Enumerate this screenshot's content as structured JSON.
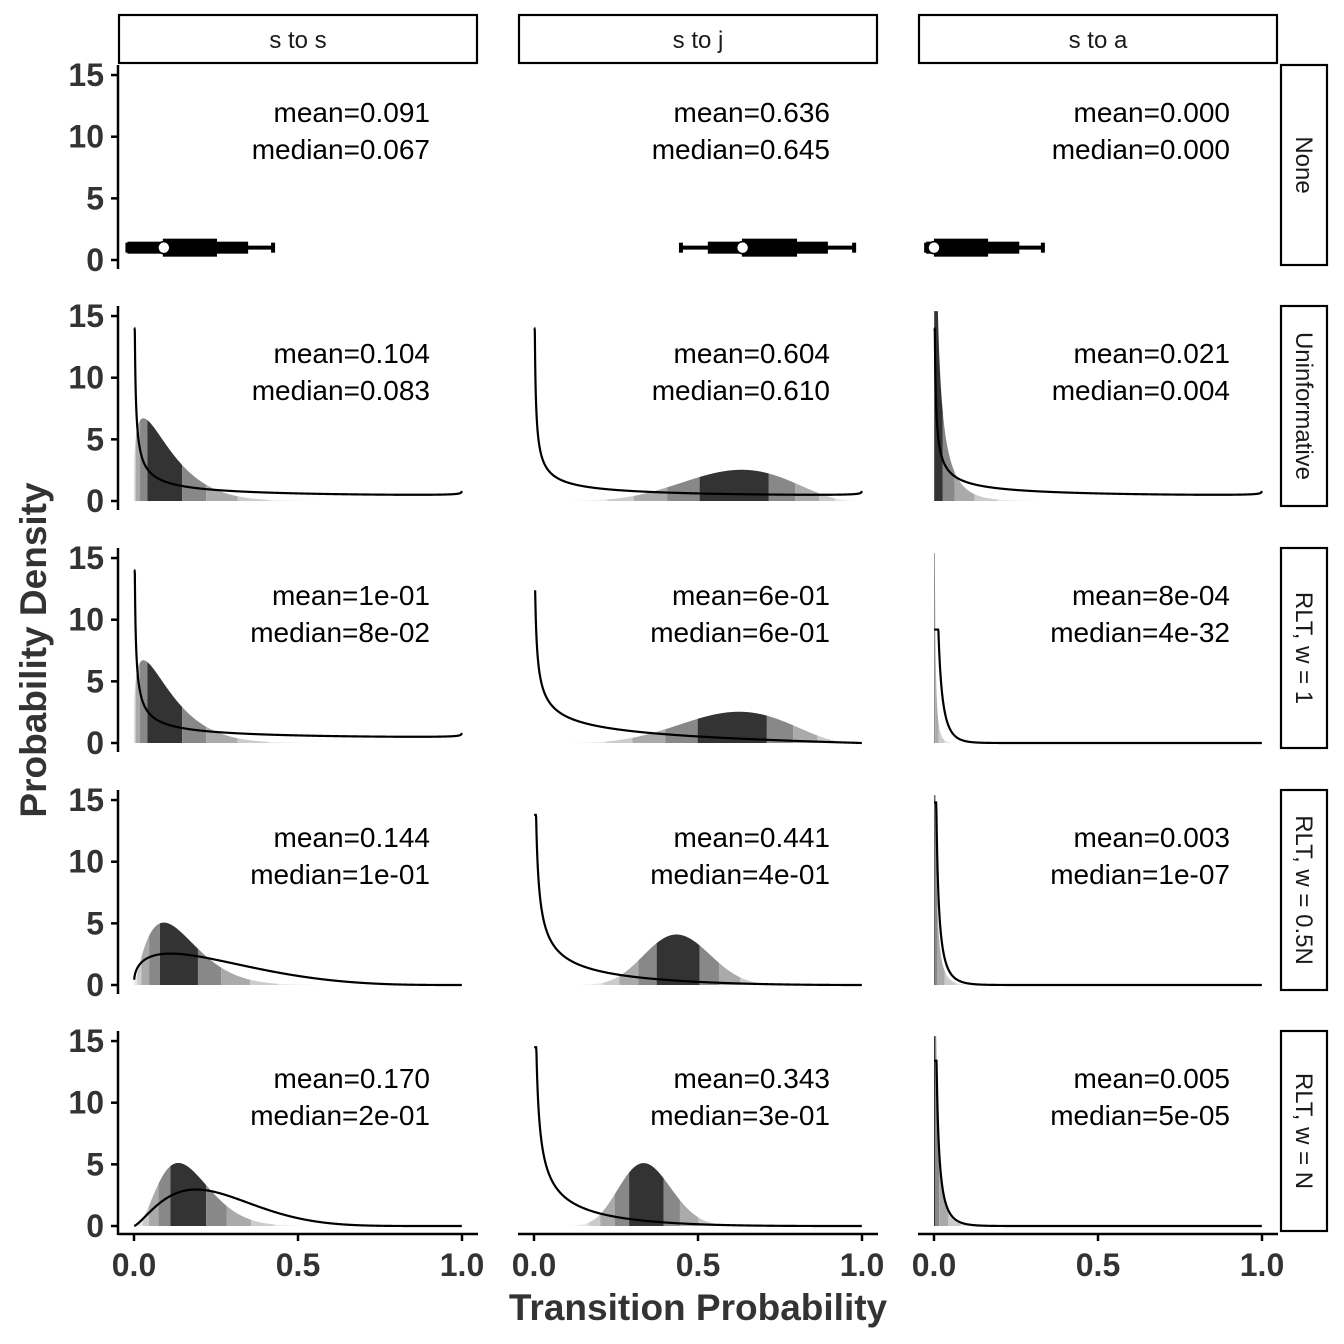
{
  "chart_data": {
    "type": "density",
    "xlabel": "Transition Probability",
    "ylabel": "Probability Density",
    "xlim": [
      0,
      1
    ],
    "ylim": [
      0,
      15
    ],
    "xticks": [
      "0.0",
      "0.5",
      "1.0"
    ],
    "yticks": [
      "0",
      "5",
      "10",
      "15"
    ],
    "grid": false,
    "interval_shades": [
      "#333333",
      "#888888",
      "#aaaaaa",
      "#cccccc",
      "#e6e6e6"
    ],
    "columns": [
      "s to s",
      "s to j",
      "s to a"
    ],
    "rows": [
      "None",
      "Uninformative",
      "RLT, w = 1",
      "RLT, w = 0.5N",
      "RLT, w = N"
    ],
    "panels": [
      {
        "row": 0,
        "col": 0,
        "mean": "mean=0.091",
        "median": "median=0.067",
        "point": 0.091,
        "intervals": [
          [
            -0.02,
            0.424
          ],
          [
            -0.02,
            0.348
          ],
          [
            0.088,
            0.253
          ]
        ]
      },
      {
        "row": 0,
        "col": 1,
        "mean": "mean=0.636",
        "median": "median=0.645",
        "point": 0.636,
        "intervals": [
          [
            0.448,
            0.976
          ],
          [
            0.53,
            0.896
          ],
          [
            0.634,
            0.802
          ]
        ]
      },
      {
        "row": 0,
        "col": 2,
        "mean": "mean=0.000",
        "median": "median=0.000",
        "point": 0.0,
        "intervals": [
          [
            -0.024,
            0.332
          ],
          [
            -0.024,
            0.26
          ],
          [
            0.0,
            0.165
          ]
        ]
      },
      {
        "row": 1,
        "col": 0,
        "mean": "mean=0.104",
        "median": "median=0.083",
        "posterior": [
          1.3,
          11.2
        ],
        "prior": [
          0.4,
          0.9
        ],
        "prior_peak": 14
      },
      {
        "row": 1,
        "col": 1,
        "mean": "mean=0.604",
        "median": "median=0.610",
        "posterior": [
          6,
          3.9
        ],
        "prior": [
          0.4,
          0.9
        ],
        "prior_peak": 14
      },
      {
        "row": 1,
        "col": 2,
        "mean": "mean=0.021",
        "median": "median=0.004",
        "posterior": [
          0.35,
          16
        ],
        "prior": [
          0.4,
          0.9
        ],
        "prior_peak": 14
      },
      {
        "row": 2,
        "col": 0,
        "mean": "mean=1e-01",
        "median": "median=8e-02",
        "posterior": [
          1.3,
          11.2
        ],
        "prior": [
          0.4,
          0.9
        ],
        "prior_peak": 14
      },
      {
        "row": 2,
        "col": 1,
        "mean": "mean=6e-01",
        "median": "median=6e-01",
        "posterior": [
          6,
          4
        ],
        "prior": [
          0.5,
          2
        ],
        "prior_peak": 12.3
      },
      {
        "row": 2,
        "col": 2,
        "mean": "mean=8e-04",
        "median": "median=4e-32",
        "posterior": [
          0.05,
          60
        ],
        "prior": [
          0.2,
          30
        ],
        "prior_peak": 9.2
      },
      {
        "row": 3,
        "col": 0,
        "mean": "mean=0.144",
        "median": "median=1e-01",
        "posterior": [
          2.2,
          13
        ],
        "prior": [
          1.4,
          4.2
        ],
        "prior_peak": 14
      },
      {
        "row": 3,
        "col": 1,
        "mean": "mean=0.441",
        "median": "median=4e-01",
        "posterior": [
          11.6,
          14.8
        ],
        "prior": [
          0.4,
          3
        ],
        "prior_peak": 13.8
      },
      {
        "row": 3,
        "col": 2,
        "mean": "mean=0.003",
        "median": "median=1e-07",
        "posterior": [
          0.1,
          33
        ],
        "prior": [
          0.15,
          25
        ],
        "prior_peak": 14.8
      },
      {
        "row": 4,
        "col": 0,
        "mean": "mean=0.170",
        "median": "median=2e-01",
        "posterior": [
          3.5,
          17
        ],
        "prior": [
          2.4,
          7
        ],
        "prior_peak": 14
      },
      {
        "row": 4,
        "col": 1,
        "mean": "mean=0.343",
        "median": "median=3e-01",
        "posterior": [
          12.7,
          24.3
        ],
        "prior": [
          0.4,
          4
        ],
        "prior_peak": 14.5
      },
      {
        "row": 4,
        "col": 2,
        "mean": "mean=0.005",
        "median": "median=5e-05",
        "posterior": [
          0.15,
          30
        ],
        "prior": [
          0.15,
          25
        ],
        "prior_peak": 13.4
      }
    ]
  }
}
